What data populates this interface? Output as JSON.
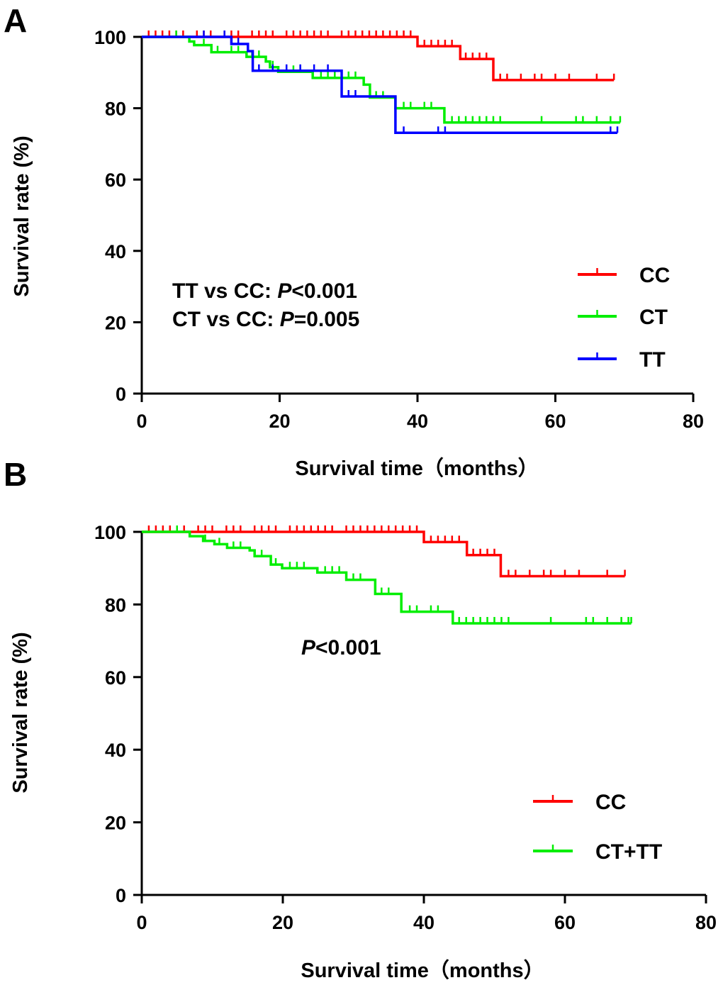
{
  "chart_data": [
    {
      "panel_label": "A",
      "type": "line",
      "subtype": "kaplan-meier",
      "xlabel": "Survival time（months）",
      "ylabel": "Survival rate (%)",
      "xlim": [
        0,
        80
      ],
      "ylim": [
        0,
        100
      ],
      "xticks": [
        0,
        20,
        40,
        60,
        80
      ],
      "yticks": [
        0,
        20,
        40,
        60,
        80,
        100
      ],
      "grid": false,
      "legend_position": "right",
      "annotations": [
        {
          "prefix": "TT vs CC: ",
          "italic": "P",
          "suffix": "<0.001"
        },
        {
          "prefix": "CT vs CC: ",
          "italic": "P",
          "suffix": "=0.005"
        }
      ],
      "series": [
        {
          "name": "CC",
          "color": "#ff0000",
          "steps": [
            [
              0,
              100
            ],
            [
              40,
              97.4
            ],
            [
              46.2,
              93.8
            ],
            [
              51,
              87.9
            ]
          ],
          "end": 68.5,
          "censored": [
            1,
            2,
            3,
            4,
            5,
            6,
            8,
            9,
            10,
            12,
            13,
            14,
            16,
            17,
            18,
            19,
            21,
            22,
            23,
            24,
            25,
            26,
            27,
            29,
            30,
            31,
            32,
            33,
            34,
            35,
            36,
            37,
            38,
            39,
            41,
            42,
            43,
            44,
            45,
            47,
            48,
            49,
            50,
            52,
            53,
            55,
            57,
            58,
            60,
            62,
            66,
            68.5
          ]
        },
        {
          "name": "CT",
          "color": "#00ee00",
          "steps": [
            [
              0,
              100
            ],
            [
              6.9,
              98.7
            ],
            [
              7.6,
              97.7
            ],
            [
              10.1,
              95.7
            ],
            [
              15.2,
              94.4
            ],
            [
              18,
              93.1
            ],
            [
              18.6,
              91.5
            ],
            [
              19.8,
              90.2
            ],
            [
              24.8,
              88.5
            ],
            [
              32.2,
              86.6
            ],
            [
              33.1,
              83
            ],
            [
              36.8,
              80
            ],
            [
              43.9,
              76
            ]
          ],
          "end": 69.4,
          "censored": [
            5,
            9,
            11,
            13,
            14,
            16,
            17,
            19,
            21,
            22,
            23,
            26,
            27,
            28,
            30,
            31,
            34,
            35,
            38,
            39,
            41,
            42,
            45,
            46,
            47,
            48,
            49,
            50,
            51,
            52,
            58,
            63,
            64,
            66,
            68,
            69.4
          ]
        },
        {
          "name": "TT",
          "color": "#0000ff",
          "steps": [
            [
              0,
              100
            ],
            [
              13,
              98
            ],
            [
              15.4,
              96
            ],
            [
              16.1,
              90.5
            ],
            [
              29,
              83.3
            ],
            [
              36.8,
              73.1
            ]
          ],
          "end": 69,
          "censored": [
            9,
            12,
            14,
            17,
            19,
            21,
            23,
            25,
            27,
            30,
            31,
            38,
            43,
            44,
            68,
            69
          ]
        }
      ]
    },
    {
      "panel_label": "B",
      "type": "line",
      "subtype": "kaplan-meier",
      "xlabel": "Survival time（months）",
      "ylabel": "Survival rate (%)",
      "xlim": [
        0,
        80
      ],
      "ylim": [
        0,
        100
      ],
      "xticks": [
        0,
        20,
        40,
        60,
        80
      ],
      "yticks": [
        0,
        20,
        40,
        60,
        80,
        100
      ],
      "grid": false,
      "legend_position": "bottom-right",
      "annotations": [
        {
          "prefix": "",
          "italic": "P",
          "suffix": "<0.001"
        }
      ],
      "series": [
        {
          "name": "CC",
          "color": "#ff0000",
          "steps": [
            [
              0,
              100
            ],
            [
              40,
              97.2
            ],
            [
              46.1,
              93.6
            ],
            [
              50.9,
              87.8
            ]
          ],
          "end": 68.5,
          "censored": [
            1,
            2,
            3,
            4,
            5,
            6,
            8,
            9,
            10,
            12,
            13,
            14,
            16,
            17,
            18,
            19,
            21,
            22,
            23,
            24,
            25,
            26,
            27,
            29,
            30,
            31,
            32,
            33,
            34,
            35,
            36,
            37,
            38,
            39,
            41,
            42,
            43,
            44,
            45,
            47,
            48,
            49,
            50,
            52,
            53,
            55,
            57,
            58,
            60,
            62,
            66,
            68.5
          ]
        },
        {
          "name": "CT+TT",
          "color": "#00ee00",
          "steps": [
            [
              0,
              100
            ],
            [
              6.8,
              98.8
            ],
            [
              8.7,
              97.5
            ],
            [
              10.3,
              96.6
            ],
            [
              12.1,
              95.6
            ],
            [
              15.3,
              94.9
            ],
            [
              16,
              93.3
            ],
            [
              18.3,
              91
            ],
            [
              19.9,
              90
            ],
            [
              24.9,
              88.8
            ],
            [
              29,
              86.8
            ],
            [
              33.1,
              82.9
            ],
            [
              36.8,
              78
            ],
            [
              44.1,
              74.8
            ]
          ],
          "end": 69.4,
          "censored": [
            5,
            9,
            11,
            13,
            14,
            16,
            17,
            19,
            21,
            22,
            23,
            26,
            27,
            28,
            30,
            31,
            34,
            35,
            38,
            39,
            41,
            42,
            45,
            46,
            47,
            48,
            49,
            50,
            51,
            52,
            58,
            63,
            64,
            66,
            68,
            69,
            69.4
          ]
        }
      ]
    }
  ]
}
